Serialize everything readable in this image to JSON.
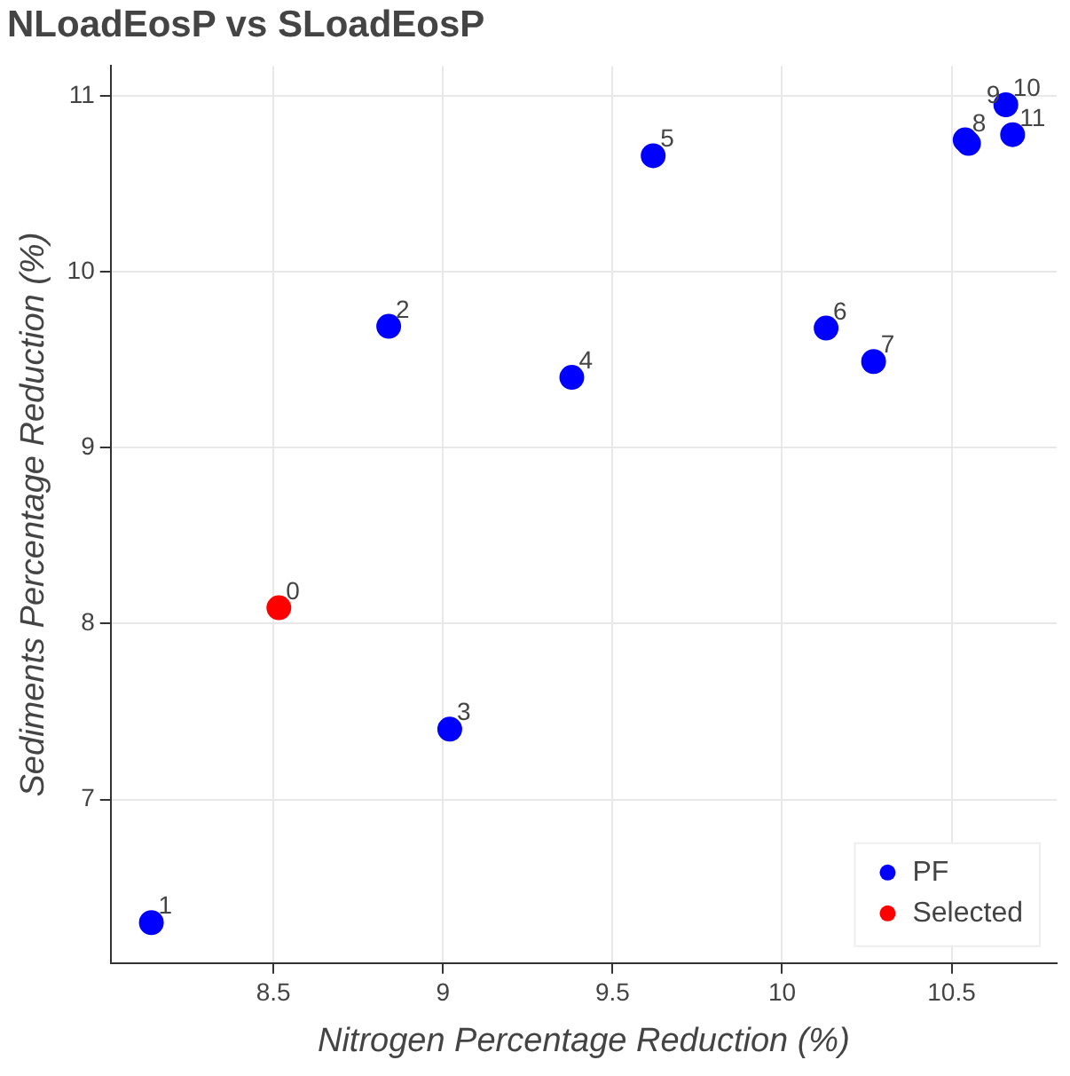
{
  "chart_data": {
    "type": "scatter",
    "title": "NLoadEosP vs SLoadEosP",
    "xlabel": "Nitrogen Percentage Reduction (%)",
    "ylabel": "Sediments Percentage Reduction (%)",
    "series": [
      {
        "name": "PF",
        "color": "#0000ff",
        "x": [
          8.14,
          8.84,
          9.02,
          9.38,
          9.62,
          10.13,
          10.27,
          10.54,
          10.55,
          10.66,
          10.68
        ],
        "values": [
          6.3,
          9.69,
          7.4,
          9.4,
          10.66,
          9.68,
          9.49,
          10.75,
          10.73,
          10.95,
          10.78
        ]
      },
      {
        "name": "Selected",
        "color": "#0000ff",
        "colors": [
          "#ff0000"
        ],
        "x": [
          8.516
        ],
        "values": [
          8.09
        ]
      }
    ],
    "xlim": [
      8.02,
      10.81
    ],
    "xticks": [
      8.5,
      9,
      9.5,
      10,
      10.5
    ],
    "ylim": [
      6.07,
      11.17
    ],
    "yticks": [
      7,
      8,
      9,
      10,
      11
    ],
    "annotations": [
      {
        "text": "0",
        "x": 8.516,
        "y": 8.09
      },
      {
        "text": "1",
        "x": 8.14,
        "y": 6.3
      },
      {
        "text": "2",
        "x": 8.84,
        "y": 9.69
      },
      {
        "text": "3",
        "x": 9.02,
        "y": 7.4
      },
      {
        "text": "4",
        "x": 9.38,
        "y": 9.4
      },
      {
        "text": "5",
        "x": 9.62,
        "y": 10.66
      },
      {
        "text": "6",
        "x": 10.13,
        "y": 9.68
      },
      {
        "text": "7",
        "x": 10.27,
        "y": 9.49
      },
      {
        "text": "8",
        "x": 10.54,
        "y": 10.75
      },
      {
        "text": "9",
        "x": 10.55,
        "y": 10.73
      },
      {
        "text": "10",
        "x": 10.66,
        "y": 10.95
      },
      {
        "text": "11",
        "x": 10.68,
        "y": 10.78
      }
    ],
    "grid": true,
    "legend": "bottom right",
    "marker": "circle"
  }
}
